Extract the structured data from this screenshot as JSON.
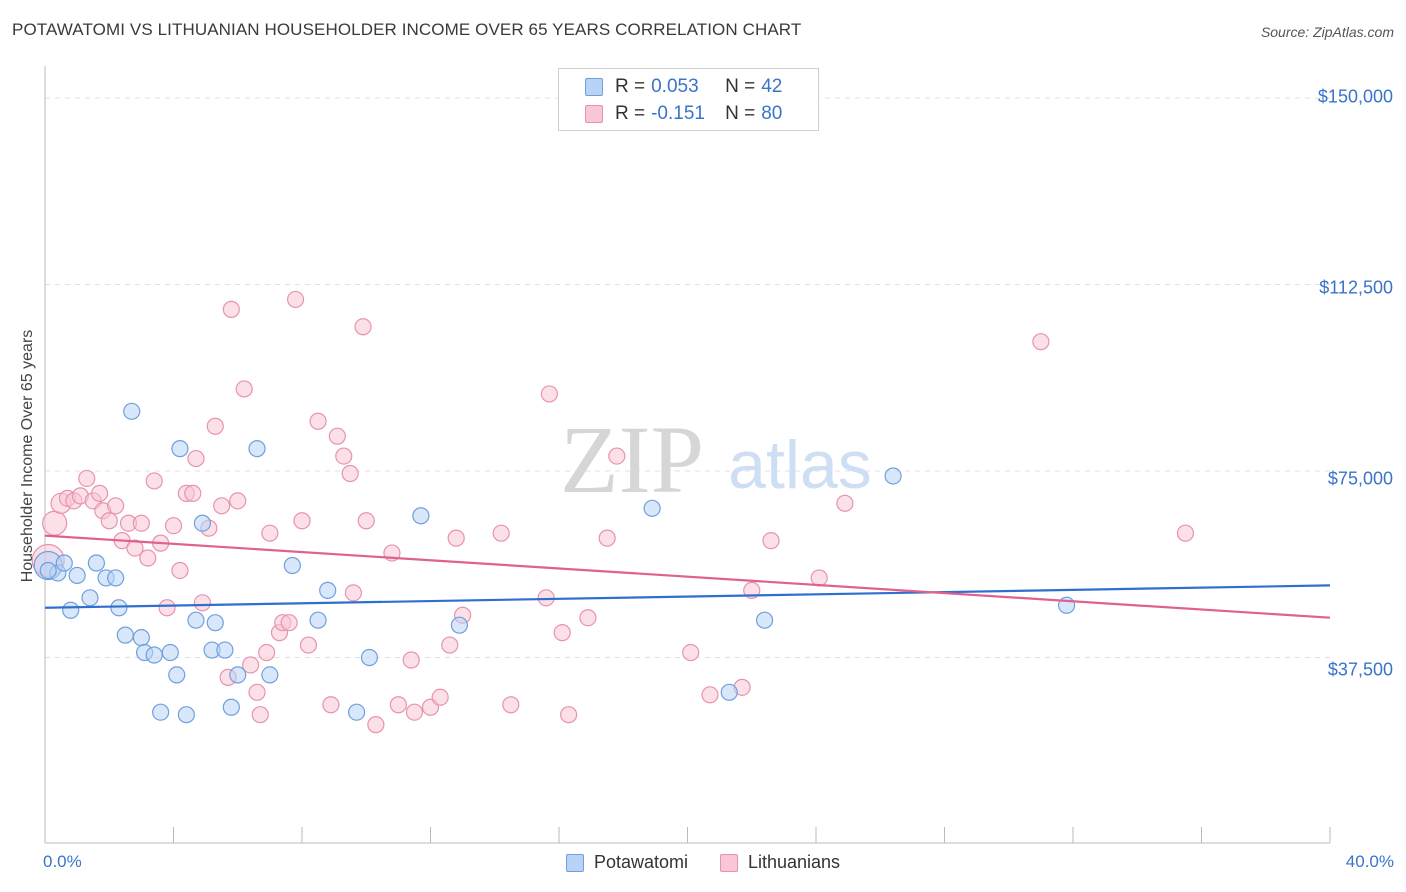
{
  "header": {
    "title": "POTAWATOMI VS LITHUANIAN HOUSEHOLDER INCOME OVER 65 YEARS CORRELATION CHART",
    "source": "Source: ZipAtlas.com"
  },
  "watermark": {
    "zip": "ZIP",
    "atlas": "atlas"
  },
  "legend_top": [
    {
      "r_label": "R =",
      "r_value": "0.053",
      "n_label": "N =",
      "n_value": "42"
    },
    {
      "r_label": "R =",
      "r_value": "-0.151",
      "n_label": "N =",
      "n_value": "80"
    }
  ],
  "legend_bottom": {
    "series1": "Potawatomi",
    "series2": "Lithuanians"
  },
  "colors": {
    "blue_fill": "#b8d3f5",
    "blue_stroke": "#6fa0dc",
    "blue_line": "#2f6fcd",
    "pink_fill": "#f8c6d6",
    "pink_stroke": "#e893ae",
    "pink_line": "#e0608f",
    "tick_text": "#3a74c9",
    "grid": "#e2e2e2"
  },
  "chart_data": {
    "type": "scatter",
    "title": "POTAWATOMI VS LITHUANIAN HOUSEHOLDER INCOME OVER 65 YEARS CORRELATION CHART",
    "xlabel": "",
    "ylabel": "Householder Income Over 65 years",
    "xlim": [
      0,
      40
    ],
    "ylim": [
      0,
      155000
    ],
    "x_tick_labels": [
      "0.0%",
      "40.0%"
    ],
    "y_ticks": [
      37500,
      75000,
      112500,
      150000
    ],
    "y_tick_labels": [
      "$37,500",
      "$75,000",
      "$112,500",
      "$150,000"
    ],
    "grid": true,
    "legend_position": "top-center",
    "series": [
      {
        "name": "Potawatomi",
        "color": "#6fa0dc",
        "r": 0.053,
        "n": 42,
        "trend": {
          "x": [
            0,
            40
          ],
          "y": [
            47500,
            52000
          ]
        },
        "points": [
          [
            0.1,
            56000,
            14
          ],
          [
            0.4,
            54500,
            8
          ],
          [
            0.6,
            56500,
            8
          ],
          [
            0.8,
            47000,
            8
          ],
          [
            1.0,
            54000,
            8
          ],
          [
            1.4,
            49500,
            8
          ],
          [
            1.6,
            56500,
            8
          ],
          [
            1.9,
            53500,
            8
          ],
          [
            2.2,
            53500,
            8
          ],
          [
            2.3,
            47500,
            8
          ],
          [
            2.5,
            42000,
            8
          ],
          [
            2.7,
            87000,
            8
          ],
          [
            3.0,
            41500,
            8
          ],
          [
            3.1,
            38500,
            8
          ],
          [
            3.4,
            38000,
            8
          ],
          [
            3.6,
            26500,
            8
          ],
          [
            3.9,
            38500,
            8
          ],
          [
            4.1,
            34000,
            8
          ],
          [
            4.2,
            79500,
            8
          ],
          [
            4.4,
            26000,
            8
          ],
          [
            4.7,
            45000,
            8
          ],
          [
            4.9,
            64500,
            8
          ],
          [
            5.2,
            39000,
            8
          ],
          [
            5.3,
            44500,
            8
          ],
          [
            5.6,
            39000,
            8
          ],
          [
            5.8,
            27500,
            8
          ],
          [
            6.0,
            34000,
            8
          ],
          [
            6.6,
            79500,
            8
          ],
          [
            7.0,
            34000,
            8
          ],
          [
            7.7,
            56000,
            8
          ],
          [
            8.5,
            45000,
            8
          ],
          [
            8.8,
            51000,
            8
          ],
          [
            9.7,
            26500,
            8
          ],
          [
            10.1,
            37500,
            8
          ],
          [
            11.7,
            66000,
            8
          ],
          [
            12.9,
            44000,
            8
          ],
          [
            18.9,
            67500,
            8
          ],
          [
            21.3,
            30500,
            8
          ],
          [
            22.4,
            45000,
            8
          ],
          [
            26.4,
            74000,
            8
          ],
          [
            31.8,
            48000,
            8
          ],
          [
            0.1,
            55000,
            8
          ]
        ]
      },
      {
        "name": "Lithuanians",
        "color": "#e893ae",
        "r": -0.151,
        "n": 80,
        "trend": {
          "x": [
            0,
            40
          ],
          "y": [
            62000,
            45500
          ]
        },
        "points": [
          [
            0.1,
            57000,
            16
          ],
          [
            0.3,
            64500,
            12
          ],
          [
            0.5,
            68500,
            10
          ],
          [
            0.7,
            69500,
            8
          ],
          [
            0.9,
            69000,
            8
          ],
          [
            1.1,
            70000,
            8
          ],
          [
            1.3,
            73500,
            8
          ],
          [
            1.5,
            69000,
            8
          ],
          [
            1.7,
            70500,
            8
          ],
          [
            1.8,
            67000,
            8
          ],
          [
            2.0,
            65000,
            8
          ],
          [
            2.2,
            68000,
            8
          ],
          [
            2.4,
            61000,
            8
          ],
          [
            2.6,
            64500,
            8
          ],
          [
            2.8,
            59500,
            8
          ],
          [
            3.0,
            64500,
            8
          ],
          [
            3.2,
            57500,
            8
          ],
          [
            3.4,
            73000,
            8
          ],
          [
            3.6,
            60500,
            8
          ],
          [
            3.8,
            47500,
            8
          ],
          [
            4.0,
            64000,
            8
          ],
          [
            4.2,
            55000,
            8
          ],
          [
            4.4,
            70500,
            8
          ],
          [
            4.6,
            70500,
            8
          ],
          [
            4.7,
            77500,
            8
          ],
          [
            4.9,
            48500,
            8
          ],
          [
            5.1,
            63500,
            8
          ],
          [
            5.3,
            84000,
            8
          ],
          [
            5.5,
            68000,
            8
          ],
          [
            5.7,
            33500,
            8
          ],
          [
            5.8,
            107500,
            8
          ],
          [
            6.0,
            69000,
            8
          ],
          [
            6.2,
            91500,
            8
          ],
          [
            6.4,
            36000,
            8
          ],
          [
            6.6,
            30500,
            8
          ],
          [
            6.7,
            26000,
            8
          ],
          [
            6.9,
            38500,
            8
          ],
          [
            7.0,
            62500,
            8
          ],
          [
            7.3,
            42500,
            8
          ],
          [
            7.4,
            44500,
            8
          ],
          [
            7.6,
            44500,
            8
          ],
          [
            7.8,
            109500,
            8
          ],
          [
            8.0,
            65000,
            8
          ],
          [
            8.2,
            40000,
            8
          ],
          [
            8.5,
            85000,
            8
          ],
          [
            8.9,
            28000,
            8
          ],
          [
            9.1,
            82000,
            8
          ],
          [
            9.3,
            78000,
            8
          ],
          [
            9.5,
            74500,
            8
          ],
          [
            9.6,
            50500,
            8
          ],
          [
            9.9,
            104000,
            8
          ],
          [
            10.0,
            65000,
            8
          ],
          [
            10.3,
            24000,
            8
          ],
          [
            10.8,
            58500,
            8
          ],
          [
            11.0,
            28000,
            8
          ],
          [
            11.4,
            37000,
            8
          ],
          [
            11.5,
            26500,
            8
          ],
          [
            12.0,
            27500,
            8
          ],
          [
            12.3,
            29500,
            8
          ],
          [
            12.6,
            40000,
            8
          ],
          [
            12.8,
            61500,
            8
          ],
          [
            13.0,
            46000,
            8
          ],
          [
            14.2,
            62500,
            8
          ],
          [
            14.5,
            28000,
            8
          ],
          [
            15.6,
            49500,
            8
          ],
          [
            15.7,
            90500,
            8
          ],
          [
            16.1,
            42500,
            8
          ],
          [
            16.3,
            26000,
            8
          ],
          [
            16.9,
            45500,
            8
          ],
          [
            17.5,
            61500,
            8
          ],
          [
            17.8,
            78000,
            8
          ],
          [
            20.1,
            38500,
            8
          ],
          [
            20.7,
            30000,
            8
          ],
          [
            21.7,
            31500,
            8
          ],
          [
            22.6,
            61000,
            8
          ],
          [
            22.0,
            51000,
            8
          ],
          [
            24.1,
            53500,
            8
          ],
          [
            24.9,
            68500,
            8
          ],
          [
            31.0,
            101000,
            8
          ],
          [
            35.5,
            62500,
            8
          ]
        ]
      }
    ]
  }
}
